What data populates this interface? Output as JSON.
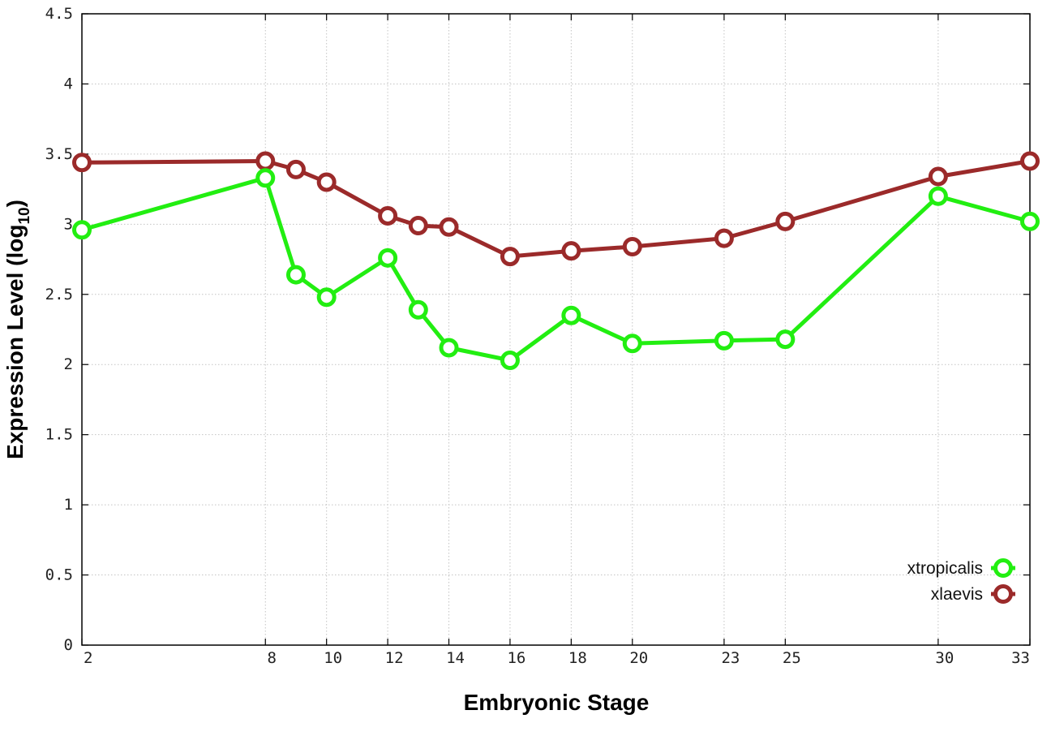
{
  "chart_data": {
    "type": "line",
    "xlabel": "Embryonic Stage",
    "ylabel": "Expression Level (log",
    "ylabel_sub": "10",
    "ylabel_close": ")",
    "x_ticks": [
      2,
      8,
      10,
      12,
      14,
      16,
      18,
      20,
      23,
      25,
      30,
      33
    ],
    "y_ticks": [
      "0",
      "0.5",
      "1",
      "1.5",
      "2",
      "2.5",
      "3",
      "3.5",
      "4",
      "4.5"
    ],
    "xlim": [
      2,
      33
    ],
    "ylim": [
      0,
      4.5
    ],
    "grid": true,
    "legend_position": "bottom-right",
    "x": [
      2,
      8,
      9,
      10,
      12,
      13,
      14,
      16,
      18,
      20,
      23,
      25,
      30,
      33
    ],
    "series": [
      {
        "name": "xtropicalis",
        "color": "#22ee11",
        "values": [
          2.96,
          3.33,
          2.64,
          2.48,
          2.76,
          2.39,
          2.12,
          2.03,
          2.35,
          2.15,
          2.17,
          2.18,
          3.2,
          3.02
        ]
      },
      {
        "name": "xlaevis",
        "color": "#9b2a2a",
        "values": [
          3.44,
          3.45,
          3.39,
          3.3,
          3.06,
          2.99,
          2.98,
          2.77,
          2.81,
          2.84,
          2.9,
          3.02,
          3.34,
          3.45
        ]
      }
    ]
  }
}
